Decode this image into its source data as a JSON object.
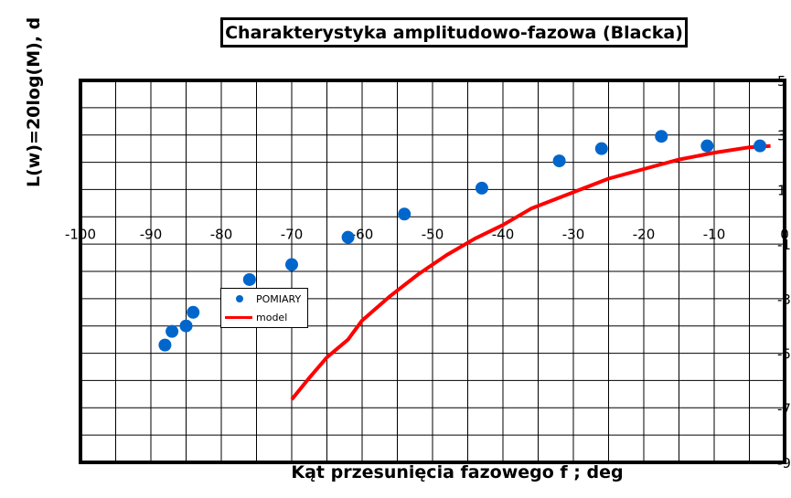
{
  "chart_data": {
    "type": "scatter",
    "title": "Charakterystyka amplitudowo-fazowa (Blacka)",
    "xlabel": "Kąt przesunięcia fazowego f ; deg",
    "ylabel": "L(w)=20log(M), d",
    "xlim": [
      -100,
      0
    ],
    "ylim": [
      -9,
      5
    ],
    "x_ticks": [
      -100,
      -90,
      -80,
      -70,
      -60,
      -50,
      -40,
      -30,
      -20,
      -10,
      0
    ],
    "x_tick_labels": [
      "-100",
      "-90",
      "-80",
      "-70",
      "-60",
      "-50",
      "-40",
      "-30",
      "-20",
      "-10",
      "0"
    ],
    "y_ticks": [
      5,
      3,
      1,
      -1,
      -3,
      -5,
      -7,
      -9
    ],
    "y_tick_labels": [
      "5",
      "3",
      "1",
      "-1",
      "-3",
      "-5",
      "-7",
      "-9"
    ],
    "grid": true,
    "legend_position": "left-middle",
    "series": [
      {
        "name": "POMIARY",
        "kind": "scatter",
        "color": "#0066cc",
        "points": [
          [
            -88,
            -4.7
          ],
          [
            -87,
            -4.2
          ],
          [
            -85,
            -4.0
          ],
          [
            -84,
            -3.5
          ],
          [
            -76,
            -2.3
          ],
          [
            -70,
            -1.75
          ],
          [
            -62,
            -0.75
          ],
          [
            -54,
            0.1
          ],
          [
            -43,
            1.05
          ],
          [
            -32,
            2.05
          ],
          [
            -26,
            2.5
          ],
          [
            -17.5,
            2.95
          ],
          [
            -11,
            2.6
          ],
          [
            -3.5,
            2.6
          ]
        ]
      },
      {
        "name": "model",
        "kind": "line",
        "color": "#ff0000",
        "points": [
          [
            -70,
            -6.7
          ],
          [
            -67.5,
            -5.9
          ],
          [
            -65,
            -5.15
          ],
          [
            -62,
            -4.5
          ],
          [
            -60,
            -3.8
          ],
          [
            -56,
            -2.9
          ],
          [
            -52,
            -2.1
          ],
          [
            -48,
            -1.4
          ],
          [
            -44,
            -0.8
          ],
          [
            -40,
            -0.3
          ],
          [
            -36,
            0.3
          ],
          [
            -30,
            0.9
          ],
          [
            -25,
            1.4
          ],
          [
            -20,
            1.75
          ],
          [
            -15,
            2.1
          ],
          [
            -10,
            2.35
          ],
          [
            -5,
            2.55
          ],
          [
            -2,
            2.6
          ]
        ]
      }
    ]
  }
}
